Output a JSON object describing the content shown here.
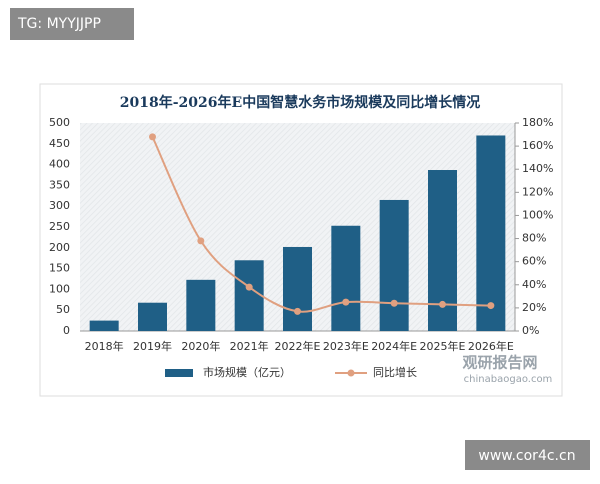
{
  "chart_data": {
    "type": "bar",
    "title": "2018年-2026年E中国智慧水务市场规模及同比增长情况",
    "categories": [
      "2018年",
      "2019年",
      "2020年",
      "2021年",
      "2022年E",
      "2023年E",
      "2024年E",
      "2025年E",
      "2026年E"
    ],
    "series": [
      {
        "name": "市场规模（亿元）",
        "type": "bar",
        "color": "#1f5f86",
        "values": [
          25,
          68,
          123,
          170,
          202,
          253,
          315,
          387,
          470
        ]
      },
      {
        "name": "同比增长",
        "type": "line",
        "axis": "y2",
        "color": "#e0a080",
        "values": [
          null,
          168,
          78,
          38,
          17,
          25,
          24,
          23,
          22
        ]
      }
    ],
    "ylim": [
      0,
      500
    ],
    "yticks": [
      0,
      50,
      100,
      150,
      200,
      250,
      300,
      350,
      400,
      450,
      500
    ],
    "y2lim": [
      0,
      180
    ],
    "y2ticks": [
      {
        "value": 0,
        "label": "0%"
      },
      {
        "value": 20,
        "label": "20%"
      },
      {
        "value": 40,
        "label": "40%"
      },
      {
        "value": 60,
        "label": "60%"
      },
      {
        "value": 80,
        "label": "80%"
      },
      {
        "value": 100,
        "label": "100%"
      },
      {
        "value": 120,
        "label": "120%"
      },
      {
        "value": 140,
        "label": "140%"
      },
      {
        "value": 160,
        "label": "160%"
      },
      {
        "value": 180,
        "label": "180%"
      }
    ],
    "legend": "bottom"
  },
  "watermarks": {
    "top_left": "TG: MYYJJPP",
    "brand": "观研报告网",
    "brand_url": "chinabaogao.com",
    "bottom_right": "www.cor4c.cn"
  }
}
